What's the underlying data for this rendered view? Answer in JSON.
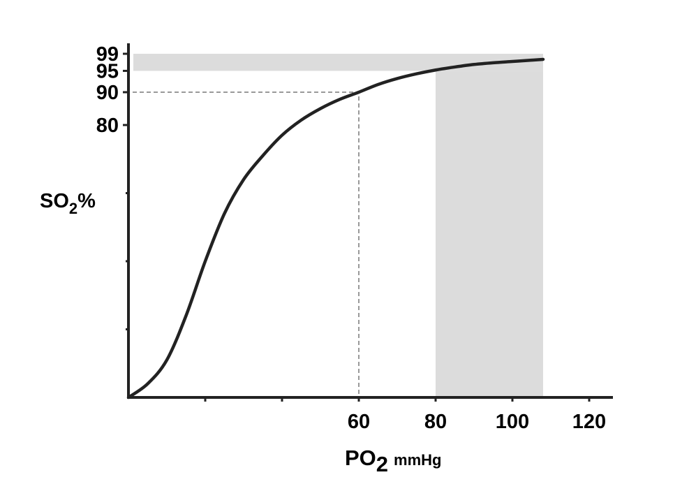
{
  "chart_data": {
    "type": "line",
    "title": "",
    "xlabel": {
      "main": "PO",
      "sub": "2",
      "unit": "mmHg"
    },
    "ylabel": {
      "main": "SO",
      "sub": "2",
      "suffix": "%"
    },
    "x_tick_labels": [
      {
        "value": 60,
        "label": "60"
      },
      {
        "value": 80,
        "label": "80"
      },
      {
        "value": 100,
        "label": "100"
      },
      {
        "value": 120,
        "label": "120"
      }
    ],
    "x_unlabeled_ticks": [
      20,
      40
    ],
    "y_tick_labels": [
      {
        "value": 99,
        "label": "99"
      },
      {
        "value": 95,
        "label": "95"
      },
      {
        "value": 90,
        "label": "90"
      },
      {
        "value": 80,
        "label": "80"
      }
    ],
    "xlim": [
      0,
      127
    ],
    "series": [
      {
        "x": [
          0,
          5,
          10,
          15,
          20,
          25,
          30,
          35,
          40,
          45,
          50,
          55,
          60,
          65,
          70,
          75,
          80,
          85,
          90,
          95,
          100,
          105,
          108
        ],
        "y": [
          0,
          4,
          11,
          24,
          40,
          54,
          64,
          71,
          77,
          81.5,
          85,
          87.8,
          90,
          91.8,
          93.2,
          94.3,
          95.2,
          95.9,
          96.5,
          96.9,
          97.2,
          97.5,
          97.7
        ]
      }
    ],
    "reference_lines": [
      {
        "type": "dashed",
        "from": {
          "x": 0,
          "y": 90
        },
        "corner": {
          "x": 60,
          "y": 90
        },
        "to": {
          "x": 60,
          "y": 0
        }
      }
    ],
    "shaded_regions": [
      {
        "orientation": "horizontal-band",
        "y_from": 95,
        "y_to": 99,
        "x_from": 0,
        "x_to": 108,
        "color": "#dcdcdc"
      },
      {
        "orientation": "vertical-band",
        "x_from": 80,
        "x_to": 108,
        "y_from": 0,
        "y_to": 95,
        "color": "#dcdcdc"
      }
    ],
    "grid": false,
    "colors": {
      "curve": "#222222",
      "axis": "#222222",
      "shade": "#dcdcdc",
      "dashed": "#333333"
    }
  }
}
